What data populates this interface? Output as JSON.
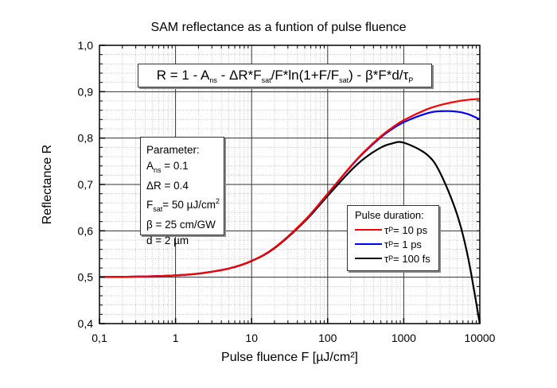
{
  "chart_data": {
    "type": "line",
    "title": "SAM reflectance as a funtion of pulse fluence",
    "xlabel": "Pulse fluence F [µJ/cm²]",
    "ylabel": "Reflectance R",
    "xscale": "log",
    "xlim": [
      0.1,
      10000
    ],
    "ylim": [
      0.4,
      1.0
    ],
    "xticks": [
      "0,1",
      "1",
      "10",
      "100",
      "1000",
      "10000"
    ],
    "yticks": [
      "0,4",
      "0,5",
      "0,6",
      "0,7",
      "0,8",
      "0,9",
      "1,0"
    ],
    "grid": true,
    "legend_placement": "center-right",
    "formula": {
      "pre": "R = 1 - A",
      "s1": "ns",
      "mid1": " - ΔR*F",
      "s2": "sat",
      "mid2": "/F*ln(1+F/F",
      "s3": "sat",
      "mid3": ") - β*F*d/τ",
      "s4": "P"
    },
    "parameters": {
      "heading": "Parameter:",
      "a_ns": {
        "sym": "A",
        "sub": "ns",
        "val": " = 0.1"
      },
      "dR": "ΔR = 0.4",
      "fsat": {
        "sym": "F",
        "sub": "sat",
        "val": "= 50 µJ/cm",
        "sup": "2"
      },
      "beta": "β  = 25 cm/GW",
      "d": "d  = 2 µm"
    },
    "legend_title": "Pulse duration:",
    "x": [
      0.1,
      0.2,
      0.5,
      1,
      2,
      5,
      10,
      20,
      50,
      100,
      200,
      300,
      500,
      700,
      1000,
      2000,
      3000,
      5000,
      7000,
      10000
    ],
    "series": [
      {
        "name": "10 ps",
        "tau": "τ",
        "sub": "P",
        "label": "= 10 ps",
        "color": "#ff0000",
        "values": [
          0.5004,
          0.5008,
          0.502,
          0.504,
          0.5078,
          0.5188,
          0.5354,
          0.5635,
          0.6227,
          0.6803,
          0.739,
          0.7702,
          0.8039,
          0.8223,
          0.8386,
          0.8619,
          0.8711,
          0.8791,
          0.8825,
          0.8845
        ]
      },
      {
        "name": "1 ps",
        "tau": "τ",
        "sub": "P",
        "label": "= 1 ps",
        "color": "#0000ff",
        "values": [
          0.5004,
          0.5008,
          0.502,
          0.504,
          0.5078,
          0.5188,
          0.5353,
          0.5634,
          0.6225,
          0.6798,
          0.7381,
          0.7688,
          0.8017,
          0.8192,
          0.8342,
          0.8531,
          0.8579,
          0.857,
          0.8516,
          0.8404
        ]
      },
      {
        "name": "100 fs",
        "tau": "τ",
        "sub": "P",
        "label": "= 100 fs",
        "color": "#000000",
        "values": [
          0.5004,
          0.5008,
          0.502,
          0.504,
          0.5077,
          0.5186,
          0.5349,
          0.5625,
          0.6203,
          0.6754,
          0.7293,
          0.7556,
          0.7796,
          0.7883,
          0.7901,
          0.7649,
          0.7256,
          0.6365,
          0.5429,
          0.3994
        ]
      }
    ]
  }
}
